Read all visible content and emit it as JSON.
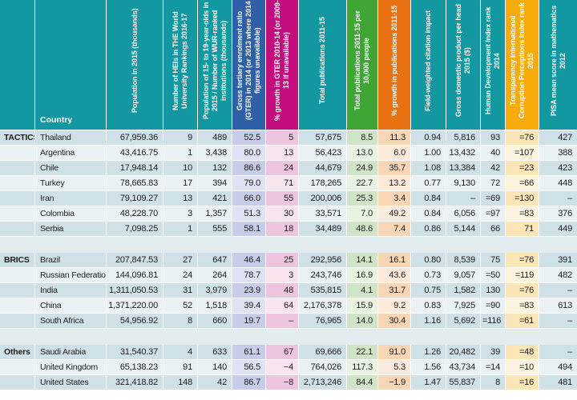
{
  "colors": {
    "teal": "#1397a1",
    "blue": "#2f5fa5",
    "magenta": "#c30d7f",
    "green": "#3fa535",
    "orange": "#e87211",
    "yellow": "#f7ab0c"
  },
  "chart_data": {
    "type": "table",
    "country_header": "Country",
    "columns": [
      {
        "key": "pop2015",
        "label": "Population in 2015 (thousands)",
        "color": "teal"
      },
      {
        "key": "heis",
        "label": "Number of HEIs in THE World University Rankings 2016-17",
        "color": "teal"
      },
      {
        "key": "pop1519",
        "label": "Population of 15- to 19-year-olds in 2015 / Number of WUR-ranked institutions (thousands)",
        "color": "teal"
      },
      {
        "key": "gter",
        "label": "Gross tertiary enrolment ratio (GTER) in 2014 (or 2013 where 2014 figures unavailable)",
        "color": "blue"
      },
      {
        "key": "gter_growth",
        "label": "% growth in GTER 2010-14 (or 2009-13 if unavailable)",
        "color": "magenta"
      },
      {
        "key": "total_pubs",
        "label": "Total publications 2011-15",
        "color": "teal"
      },
      {
        "key": "pubs_per_10k",
        "label": "Total publications 2011-15 per 10,000 people",
        "color": "green"
      },
      {
        "key": "pubs_growth",
        "label": "% growth in publications 2011-15",
        "color": "orange"
      },
      {
        "key": "fwci",
        "label": "Field-weighted citation impact",
        "color": "teal"
      },
      {
        "key": "gdp",
        "label": "Gross domestic product per head 2015 ($)",
        "color": "teal"
      },
      {
        "key": "hdi",
        "label": "Human Development Index rank 2014",
        "color": "teal"
      },
      {
        "key": "cpi",
        "label": "Transparency International Corruption Perceptions Index rank 2015",
        "color": "yellow"
      },
      {
        "key": "pisa",
        "label": "PISA mean score in mathematics 2012",
        "color": "teal"
      }
    ],
    "groups": [
      {
        "label": "TACTICS",
        "rows": [
          {
            "country": "Thailand",
            "values": [
              "67,959.36",
              "9",
              "489",
              "52.5",
              "5",
              "57,675",
              "8.5",
              "11.3",
              "0.94",
              "5,816",
              "93",
              "=76",
              "427"
            ]
          },
          {
            "country": "Argentina",
            "values": [
              "43,416.75",
              "1",
              "3,438",
              "80.0",
              "13",
              "56,423",
              "13.0",
              "6.0",
              "1.00",
              "13,432",
              "40",
              "=107",
              "388"
            ]
          },
          {
            "country": "Chile",
            "values": [
              "17,948.14",
              "10",
              "132",
              "86.6",
              "24",
              "44,679",
              "24.9",
              "35.7",
              "1.08",
              "13,384",
              "42",
              "=23",
              "423"
            ]
          },
          {
            "country": "Turkey",
            "values": [
              "78,665.83",
              "17",
              "394",
              "79.0",
              "71",
              "178,265",
              "22.7",
              "13.2",
              "0.77",
              "9,130",
              "72",
              "=66",
              "448"
            ]
          },
          {
            "country": "Iran",
            "values": [
              "79,109.27",
              "13",
              "421",
              "66.0",
              "55",
              "200,006",
              "25.3",
              "3.4",
              "0.84",
              "–",
              "=69",
              "=130",
              "–"
            ]
          },
          {
            "country": "Colombia",
            "values": [
              "48,228.70",
              "3",
              "1,357",
              "51.3",
              "30",
              "33,571",
              "7.0",
              "49.2",
              "0.84",
              "6,056",
              "=97",
              "=83",
              "376"
            ]
          },
          {
            "country": "Serbia",
            "values": [
              "7,098.25",
              "1",
              "555",
              "58.1",
              "18",
              "34,489",
              "48.6",
              "7.4",
              "0.86",
              "5,144",
              "66",
              "71",
              "449"
            ]
          }
        ]
      },
      {
        "label": "BRICS",
        "rows": [
          {
            "country": "Brazil",
            "values": [
              "207,847.53",
              "27",
              "647",
              "46.4",
              "25",
              "292,956",
              "14.1",
              "16.1",
              "0.80",
              "8,539",
              "75",
              "=76",
              "391"
            ]
          },
          {
            "country": "Russian Federation",
            "values": [
              "144,096.81",
              "24",
              "264",
              "78.7",
              "3",
              "243,746",
              "16.9",
              "43.6",
              "0.73",
              "9,057",
              "=50",
              "=119",
              "482"
            ]
          },
          {
            "country": "India",
            "values": [
              "1,311,050.53",
              "31",
              "3,979",
              "23.9",
              "48",
              "535,815",
              "4.1",
              "31.7",
              "0.75",
              "1,582",
              "130",
              "=76",
              "–"
            ]
          },
          {
            "country": "China",
            "values": [
              "1,371,220.00",
              "52",
              "1,518",
              "39.4",
              "64",
              "2,176,378",
              "15.9",
              "9.2",
              "0.83",
              "7,925",
              "=90",
              "=83",
              "613"
            ]
          },
          {
            "country": "South Africa",
            "values": [
              "54,956.92",
              "8",
              "660",
              "19.7",
              "–",
              "76,965",
              "14.0",
              "30.4",
              "1.16",
              "5,692",
              "=116",
              "=61",
              "–"
            ]
          }
        ]
      },
      {
        "label": "Others",
        "rows": [
          {
            "country": "Saudi Arabia",
            "values": [
              "31,540.37",
              "4",
              "633",
              "61.1",
              "67",
              "69,666",
              "22.1",
              "91.0",
              "1.26",
              "20,482",
              "39",
              "=48",
              "–"
            ]
          },
          {
            "country": "United Kingdom",
            "values": [
              "65,138.23",
              "91",
              "140",
              "56.5",
              "−4",
              "764,026",
              "117.3",
              "5.3",
              "1.56",
              "43,734",
              "=14",
              "=10",
              "494"
            ]
          },
          {
            "country": "United States",
            "values": [
              "321,418.82",
              "148",
              "42",
              "86.7",
              "−8",
              "2,713,246",
              "84.4",
              "−1.9",
              "1.47",
              "55,837",
              "8",
              "=16",
              "481"
            ]
          }
        ]
      }
    ]
  }
}
